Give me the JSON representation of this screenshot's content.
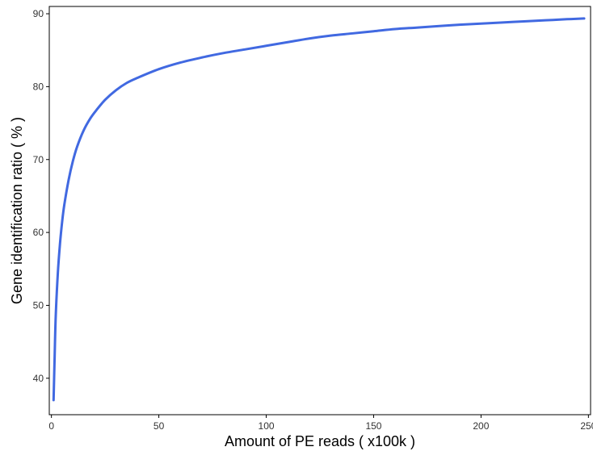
{
  "chart_data": {
    "type": "line",
    "title": "",
    "xlabel": "Amount of PE reads ( x100k )",
    "ylabel": "Gene identification ratio ( % )",
    "xlim": [
      -1,
      251
    ],
    "ylim": [
      35,
      91
    ],
    "x_ticks": [
      0,
      50,
      100,
      150,
      200,
      250
    ],
    "x_tick_labels": [
      "0",
      "50",
      "100",
      "150",
      "200",
      "250"
    ],
    "y_ticks": [
      40,
      50,
      60,
      70,
      80,
      90
    ],
    "y_tick_labels": [
      "40",
      "50",
      "60",
      "70",
      "80",
      "90"
    ],
    "grid": false,
    "line_color": "#4169e1",
    "series": [
      {
        "x": [
          1,
          1.5,
          2,
          3,
          4,
          5,
          6,
          8,
          10,
          12,
          15,
          18,
          21,
          25,
          30,
          35,
          40,
          50,
          60,
          70,
          80,
          90,
          100,
          110,
          120,
          130,
          140,
          150,
          160,
          170,
          180,
          190,
          200,
          210,
          220,
          230,
          240,
          248
        ],
        "y": [
          37,
          43,
          48.5,
          54.5,
          58.5,
          61.5,
          63.8,
          67.2,
          69.8,
          71.8,
          74,
          75.6,
          76.8,
          78.2,
          79.5,
          80.5,
          81.2,
          82.4,
          83.3,
          84,
          84.6,
          85.1,
          85.6,
          86.1,
          86.6,
          87,
          87.3,
          87.6,
          87.9,
          88.1,
          88.3,
          88.5,
          88.65,
          88.8,
          88.95,
          89.1,
          89.25,
          89.35
        ]
      }
    ]
  }
}
